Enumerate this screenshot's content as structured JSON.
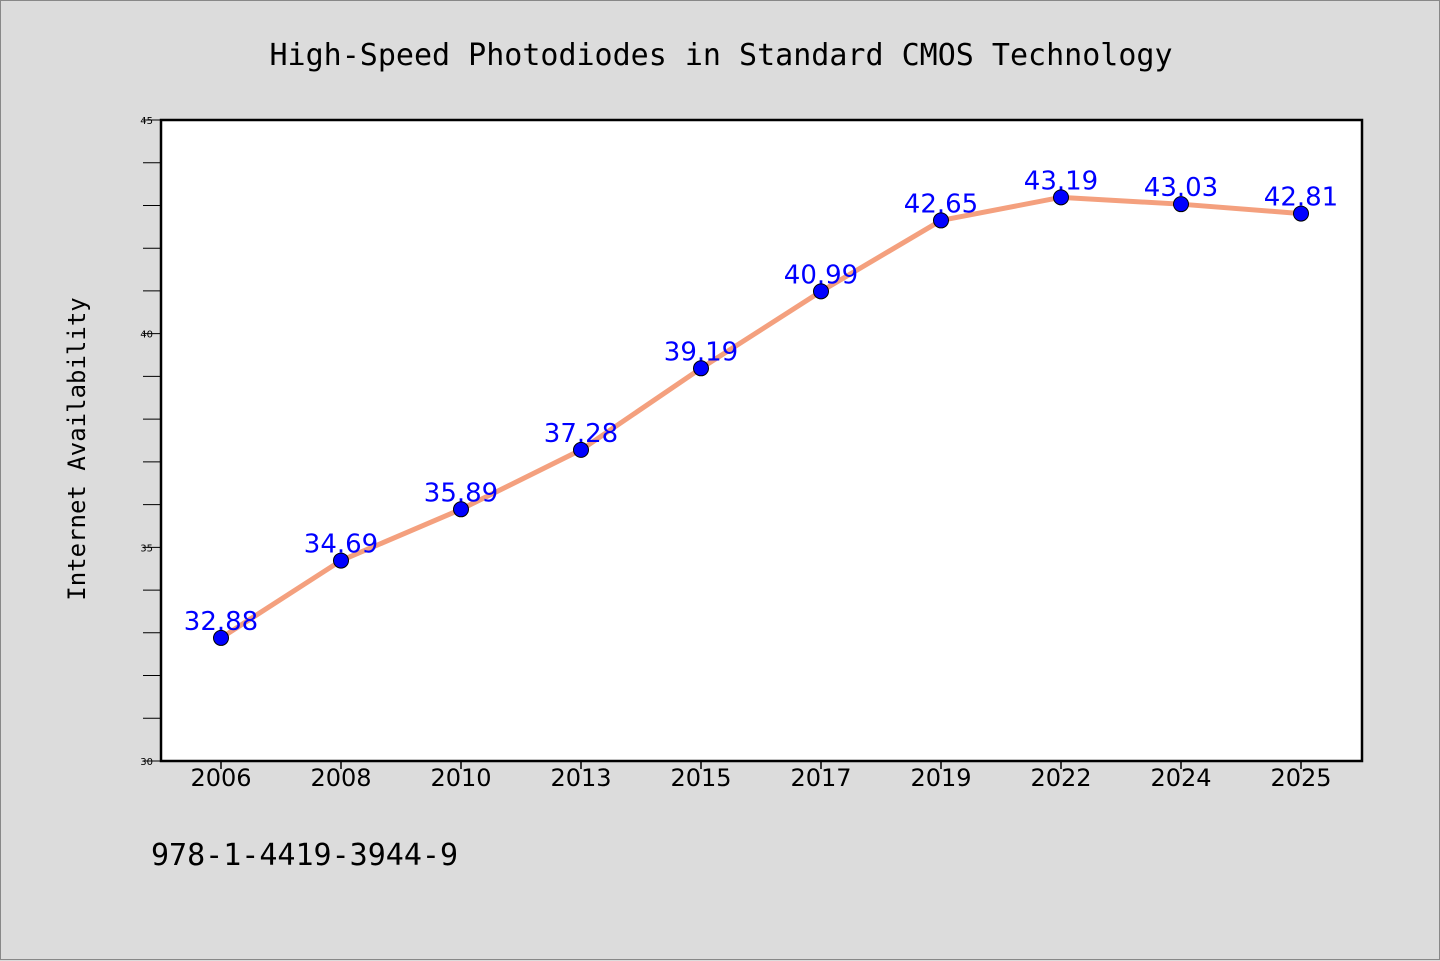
{
  "chart_data": {
    "type": "line",
    "title": "High-Speed Photodiodes in Standard CMOS Technology",
    "ylabel": "Internet Availability",
    "xlabel": "",
    "categories": [
      "2006",
      "2008",
      "2010",
      "2013",
      "2015",
      "2017",
      "2019",
      "2022",
      "2024",
      "2025"
    ],
    "values": [
      32.88,
      34.69,
      35.89,
      37.28,
      39.19,
      40.99,
      42.65,
      43.19,
      43.03,
      42.81
    ],
    "data_labels": [
      "32.88",
      "34.69",
      "35.89",
      "37.28",
      "39.19",
      "40.99",
      "42.65",
      "43.19",
      "43.03",
      "42.81"
    ],
    "ylim": [
      30,
      45
    ],
    "yticks": [
      "30",
      "35",
      "40",
      "45"
    ],
    "grid": false,
    "line_color": "#f4a07e",
    "marker_color": "#0000ff",
    "label_color": "#0000ff"
  },
  "footer": {
    "isbn": "978-1-4419-3944-9"
  },
  "colors": {
    "background": "#dcdcdc",
    "plot_background": "#ffffff"
  }
}
